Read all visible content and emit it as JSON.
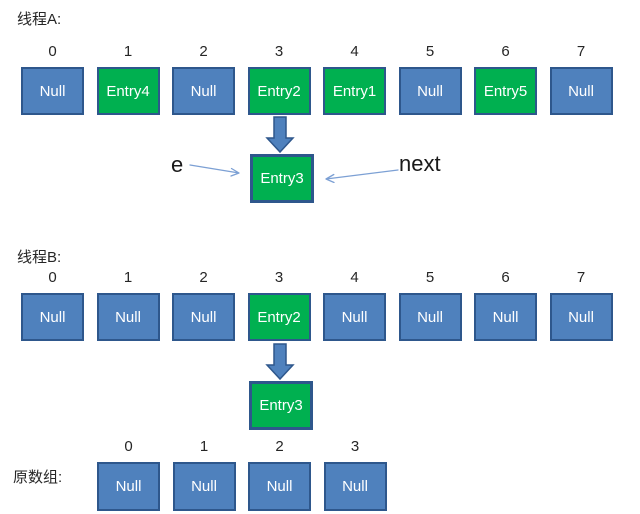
{
  "colors": {
    "background": "#FFFFFF",
    "null_fill": "#4F81BD",
    "entry_fill": "#00B050",
    "box_border": "#2E578C",
    "block_arrow_fill": "#4F81BD",
    "block_arrow_border": "#2E578C",
    "thin_arrow": "#7CA0D4",
    "text_dark": "#262626",
    "text_light": "#FFFFFF"
  },
  "thread_a": {
    "label": "线程A:",
    "cells": [
      {
        "index": "0",
        "value": "Null",
        "type": "null"
      },
      {
        "index": "1",
        "value": "Entry4",
        "type": "entry"
      },
      {
        "index": "2",
        "value": "Null",
        "type": "null"
      },
      {
        "index": "3",
        "value": "Entry2",
        "type": "entry"
      },
      {
        "index": "4",
        "value": "Entry1",
        "type": "entry"
      },
      {
        "index": "5",
        "value": "Null",
        "type": "null"
      },
      {
        "index": "6",
        "value": "Entry5",
        "type": "entry"
      },
      {
        "index": "7",
        "value": "Null",
        "type": "null"
      }
    ],
    "detached": {
      "value": "Entry3",
      "type": "entry"
    },
    "left_pointer_label": "e",
    "right_pointer_label": "next"
  },
  "thread_b": {
    "label": "线程B:",
    "cells": [
      {
        "index": "0",
        "value": "Null",
        "type": "null"
      },
      {
        "index": "1",
        "value": "Null",
        "type": "null"
      },
      {
        "index": "2",
        "value": "Null",
        "type": "null"
      },
      {
        "index": "3",
        "value": "Entry2",
        "type": "entry"
      },
      {
        "index": "4",
        "value": "Null",
        "type": "null"
      },
      {
        "index": "5",
        "value": "Null",
        "type": "null"
      },
      {
        "index": "6",
        "value": "Null",
        "type": "null"
      },
      {
        "index": "7",
        "value": "Null",
        "type": "null"
      }
    ],
    "detached": {
      "value": "Entry3",
      "type": "entry"
    }
  },
  "original_array": {
    "label": "原数组:",
    "cells": [
      {
        "index": "0",
        "value": "Null",
        "type": "null"
      },
      {
        "index": "1",
        "value": "Null",
        "type": "null"
      },
      {
        "index": "2",
        "value": "Null",
        "type": "null"
      },
      {
        "index": "3",
        "value": "Null",
        "type": "null"
      }
    ]
  }
}
